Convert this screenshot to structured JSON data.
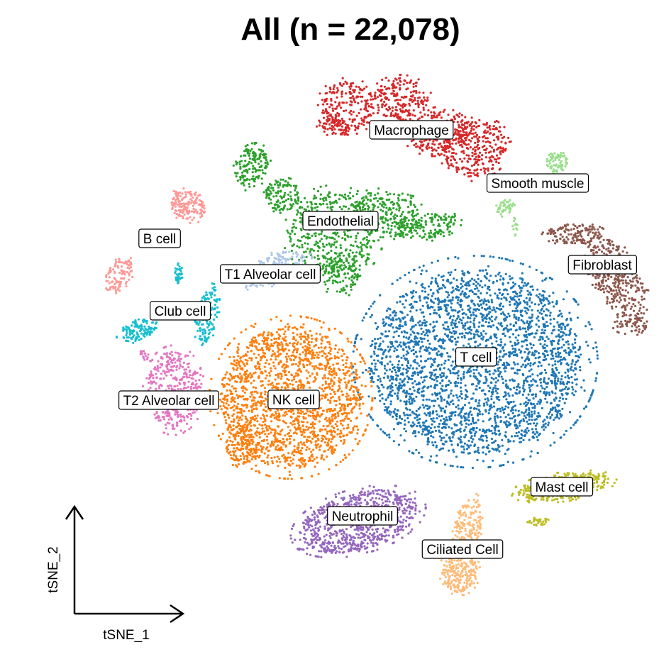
{
  "chart_data": {
    "type": "scatter",
    "title": "All (n = 22,078)",
    "xlabel": "tSNE_1",
    "ylabel": "tSNE_2",
    "legend": "none (clusters labelled in place)",
    "clusters": [
      {
        "name": "Macrophage",
        "color": "#d62728",
        "center": [
          580,
          183
        ]
      },
      {
        "name": "Smooth muscle",
        "color": "#98df8a",
        "center": [
          758,
          258
        ]
      },
      {
        "name": "Endothelial",
        "color": "#2ca02c",
        "center": [
          480,
          311
        ]
      },
      {
        "name": "B cell",
        "color": "#ff9896",
        "center": [
          225,
          336
        ]
      },
      {
        "name": "T1 Alveolar cell",
        "color": "#aec7e8",
        "center": [
          381,
          386
        ]
      },
      {
        "name": "Fibroblast",
        "color": "#8c564b",
        "center": [
          849,
          373
        ]
      },
      {
        "name": "Club cell",
        "color": "#17becf",
        "center": [
          254,
          438
        ]
      },
      {
        "name": "T cell",
        "color": "#1f77b4",
        "center": [
          671,
          503
        ]
      },
      {
        "name": "T2 Alveolar cell",
        "color": "#e377c2",
        "center": [
          238,
          564
        ]
      },
      {
        "name": "NK cell",
        "color": "#ff7f0e",
        "center": [
          414,
          563
        ]
      },
      {
        "name": "Mast cell",
        "color": "#bcbd22",
        "center": [
          792,
          686
        ]
      },
      {
        "name": "Neutrophil",
        "color": "#9467bd",
        "center": [
          511,
          727
        ]
      },
      {
        "name": "Ciliated Cell",
        "color": "#ffbb78",
        "center": [
          652,
          774
        ]
      }
    ]
  }
}
